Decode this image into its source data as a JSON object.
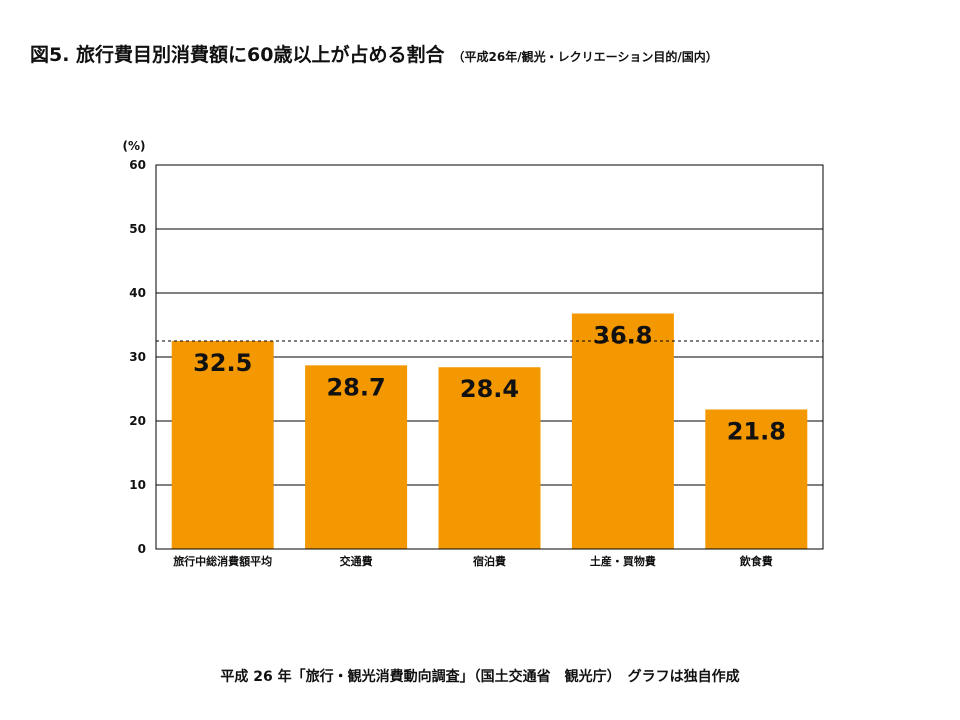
{
  "page_title": "図5. 旅行費目別消費額に60歳以上が占める割合",
  "page_subtitle": "（平成26年/観光・レクリエーション目的/国内）",
  "source_note": "平成 26 年「旅行・観光消費動向調査」（国土交通省　観光庁）　グラフは独自作成",
  "colors": {
    "bar": "#F39800",
    "grid": "#000000",
    "reference_line": "#000000"
  },
  "chart_data": {
    "type": "bar",
    "title": "",
    "ylabel": "(%)",
    "xlabel": "",
    "categories": [
      "旅行中総消費額平均",
      "交通費",
      "宿泊費",
      "土産・買物費",
      "飲食費"
    ],
    "values": [
      32.5,
      28.7,
      28.4,
      36.8,
      21.8
    ],
    "value_labels": [
      "32.5",
      "28.7",
      "28.4",
      "36.8",
      "21.8"
    ],
    "ylim": [
      0,
      60
    ],
    "yticks": [
      0,
      10,
      20,
      30,
      40,
      50,
      60
    ],
    "grid": true,
    "reference_line": {
      "value": 32.5,
      "style": "dashed"
    }
  }
}
